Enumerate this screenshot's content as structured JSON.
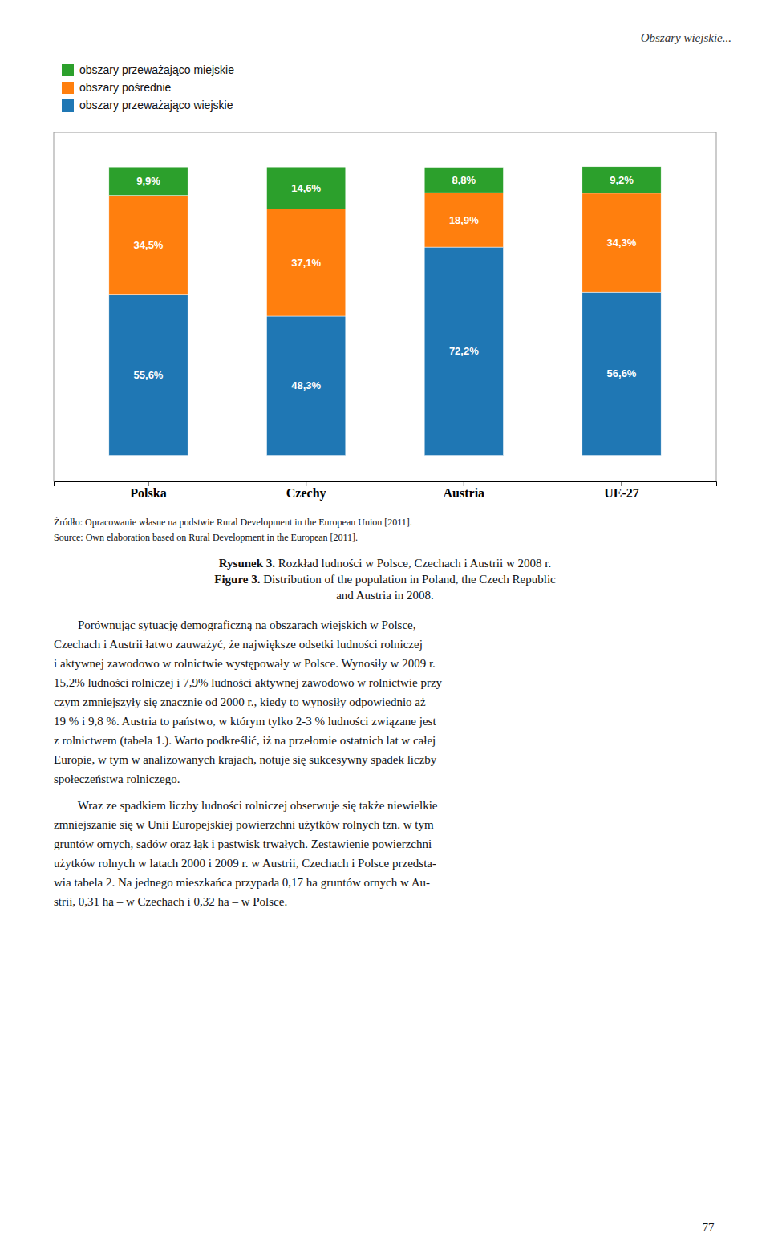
{
  "chart_data": {
    "type": "bar",
    "stacked": true,
    "categories": [
      "Polska",
      "Czechy",
      "Austria",
      "UE-27"
    ],
    "series": [
      {
        "name": "obszary przeważająco wiejskie",
        "values": [
          55.6,
          48.3,
          72.2,
          56.6
        ],
        "value_labels": [
          "55,6%",
          "48,3%",
          "72,2%",
          "56,6%"
        ]
      },
      {
        "name": "obszary pośrednie",
        "values": [
          34.5,
          37.1,
          18.9,
          34.3
        ],
        "value_labels": [
          "34,5%",
          "37,1%",
          "18,9%",
          "34,3%"
        ]
      },
      {
        "name": "obszary przeważająco miejskie",
        "values": [
          9.9,
          14.6,
          8.8,
          9.2
        ],
        "value_labels": [
          "9,9%",
          "14,6%",
          "8,8%",
          "9,2%"
        ]
      }
    ],
    "ylim": [
      -9,
      112
    ],
    "tick_labels": "x",
    "data_labels": true,
    "legend": "upper left",
    "grid": false
  },
  "header": "Obszary wiejskie...",
  "source_lines": [
    "Źródło: Opracowanie własne na podstwie Rural Development in the European Union [2011].",
    "Source: Own elaboration based on Rural Development in the European [2011]."
  ],
  "caption_lines": [
    "Rysunek 3. Rozkład ludności w Polsce, Czechach i Austrii w 2008 r.",
    "Figure 3. Distribution of the population in Poland, the Czech Republic",
    "and Austria in 2008."
  ],
  "body_paragraphs": [
    [
      "        Porównując sytuację demograficzną na obszarach wiejskich w Polsce,",
      "Czechach i Austrii łatwo zauważyć, że największe odsetki ludności rolniczej",
      "i aktywnej zawodowo w rolnictwie występowały w Polsce. Wynosiły w 2009 r.",
      "15,2% ludności rolniczej i 7,9% ludności aktywnej zawodowo w rolnictwie przy",
      "czym zmniejszyły się znacznie od 2000 r., kiedy to wynosiły odpowiednio aż",
      "19 % i 9,8 %. Austria to państwo, w którym tylko 2-3 % ludności związane jest",
      "z rolnictwem (tabela 1.). Warto podkreślić, iż na przełomie ostatnich lat w całej",
      "Europie, w tym w analizowanych krajach, notuje się sukcesywny spadek liczby",
      "społeczeństwa rolniczego."
    ],
    [
      "        Wraz ze spadkiem liczby ludności rolniczej obserwuje się także niewielkie",
      "zmniejszanie się w Unii Europejskiej powierzchni użytków rolnych tzn. w tym",
      "gruntów ornych, sadów oraz łąk i pastwisk trwałych. Zestawienie powierzchni",
      "użytków rolnych w latach 2000 i 2009 r. w Austrii, Czechach i Polsce przedsta-",
      "wia tabela 2. Na jednego mieszkańca przypada 0,17 ha gruntów ornych w Au-",
      "strii, 0,31 ha – w Czechach i 0,32 ha – w Polsce."
    ]
  ],
  "page_number": "77"
}
